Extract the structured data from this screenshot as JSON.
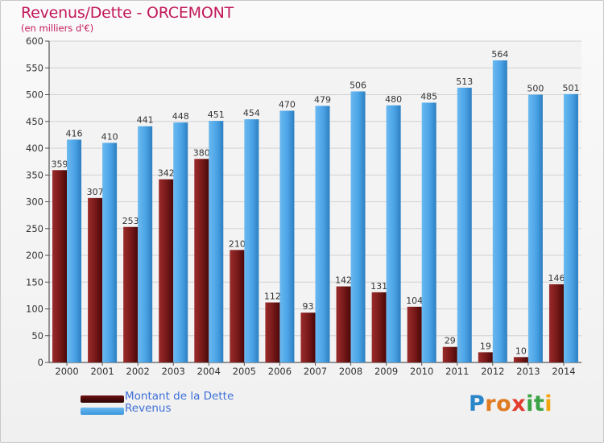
{
  "title": "Revenus/Dette - ORCEMONT",
  "subtitle": "(en milliers d'€)",
  "logo": {
    "letters": [
      "P",
      "r",
      "o",
      "x",
      "i",
      "t",
      "i"
    ],
    "colors": [
      "#2a86c9",
      "#e07b22",
      "#e07b22",
      "#e23b2e",
      "#3aa344",
      "#3aa344",
      "#f2a50c"
    ]
  },
  "legend": [
    {
      "label": "Montant de la Dette",
      "color": "#6e1010"
    },
    {
      "label": "Revenus",
      "color": "#3a96dd"
    }
  ],
  "chart_data": {
    "type": "bar",
    "title": "Revenus/Dette - ORCEMONT",
    "subtitle": "(en milliers d'€)",
    "categories": [
      "2000",
      "2001",
      "2002",
      "2003",
      "2004",
      "2005",
      "2006",
      "2007",
      "2008",
      "2009",
      "2010",
      "2011",
      "2012",
      "2013",
      "2014"
    ],
    "series": [
      {
        "name": "Montant de la Dette",
        "color": "#7a1a1a",
        "values": [
          359,
          307,
          253,
          342,
          380,
          210,
          112,
          93,
          142,
          131,
          104,
          29,
          19,
          10,
          146
        ],
        "labels": [
          "359",
          "307",
          "253",
          "342",
          "380",
          "210",
          "112",
          "93",
          "142",
          "131",
          "104",
          "29",
          "19",
          "10",
          "146"
        ]
      },
      {
        "name": "Revenus",
        "color": "#3a96dd",
        "values": [
          416,
          410,
          441,
          448,
          451,
          454,
          470,
          479,
          506,
          480,
          485,
          513,
          564,
          500,
          501
        ],
        "labels": [
          "416",
          "410",
          "441",
          "448",
          "451",
          "454",
          "470",
          "479",
          "506",
          "480",
          "485",
          "513",
          "564",
          "500",
          "501"
        ]
      }
    ],
    "ylim": [
      0,
      600
    ],
    "yticks": [
      0,
      50,
      100,
      150,
      200,
      250,
      300,
      350,
      400,
      450,
      500,
      550,
      600
    ],
    "grid": true,
    "xlabel": "",
    "ylabel": ""
  }
}
